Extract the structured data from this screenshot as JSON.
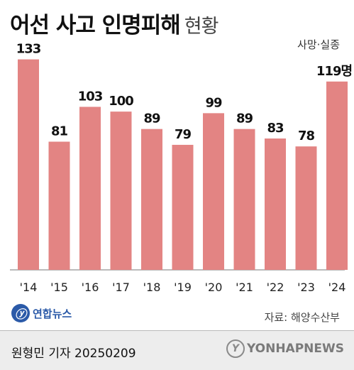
{
  "header": {
    "title": "어선 사고 인명피해",
    "subtitle": "현황",
    "unit_label": "사망·실종"
  },
  "chart_data": {
    "type": "bar",
    "categories": [
      "'14",
      "'15",
      "'16",
      "'17",
      "'18",
      "'19",
      "'20",
      "'21",
      "'22",
      "'23",
      "'24"
    ],
    "values": [
      133,
      81,
      103,
      100,
      89,
      79,
      99,
      89,
      83,
      78,
      119
    ],
    "value_labels": [
      "133",
      "81",
      "103",
      "100",
      "89",
      "79",
      "99",
      "89",
      "83",
      "78",
      "119명"
    ],
    "ylim": [
      0,
      140
    ],
    "grid": false,
    "bar_color": "#e38483"
  },
  "source": {
    "text": "자료: 해양수산부"
  },
  "logo": {
    "mark": "ⓨ",
    "text": "연합뉴스",
    "color": "#2b5aa8"
  },
  "footer": {
    "credit": "원형민 기자  20250209",
    "watermark_mark": "Y",
    "watermark_text": "YONHAPNEWS"
  }
}
